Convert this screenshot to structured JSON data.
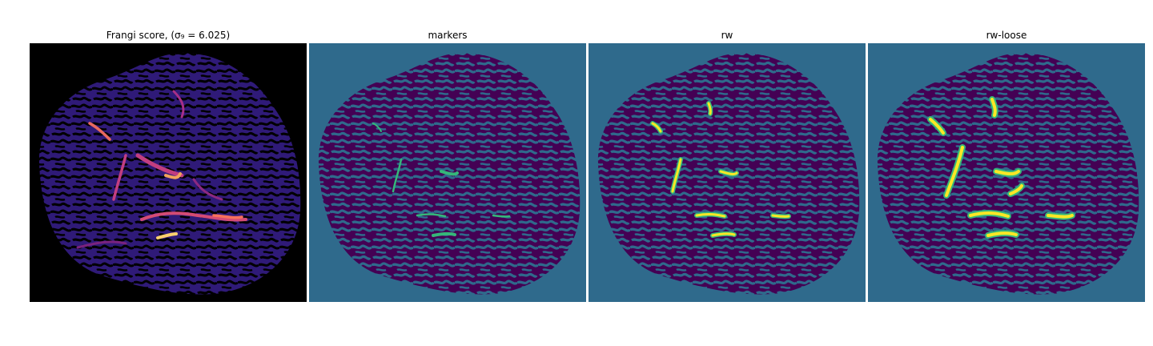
{
  "figure": {
    "panels": [
      {
        "title": "Frangi score, (σ₉ = 6.025)",
        "colormap": "magma",
        "background": "#000000",
        "blob": "#1f0c5a"
      },
      {
        "title": "markers",
        "colormap": "viridis",
        "background": "#2f6a8c",
        "blob": "#440154",
        "marker": "#35b779"
      },
      {
        "title": "rw",
        "colormap": "viridis",
        "background": "#2f6a8c",
        "blob": "#440154",
        "fill": "#fde725",
        "outline": "#35b779"
      },
      {
        "title": "rw-loose",
        "colormap": "viridis",
        "background": "#2f6a8c",
        "blob": "#440154",
        "fill": "#fde725",
        "outline": "#35b779"
      }
    ]
  }
}
